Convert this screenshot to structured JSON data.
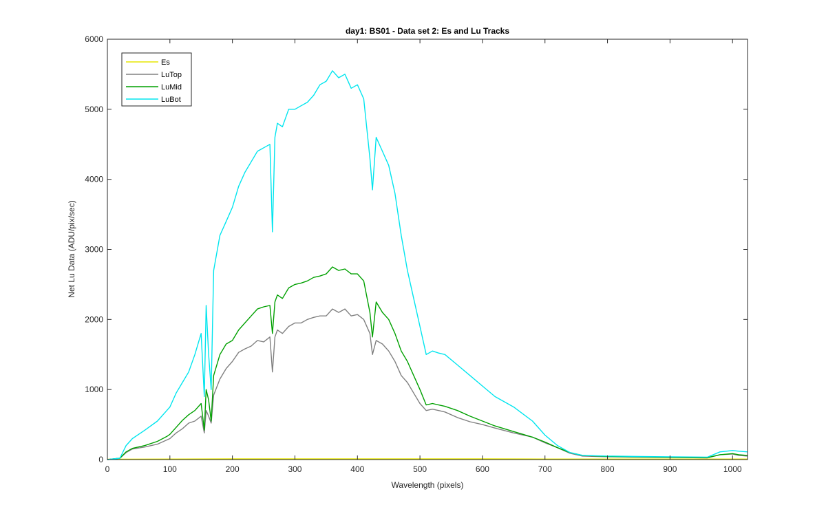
{
  "chart_data": {
    "type": "line",
    "title": "day1: BS01 - Data set 2: Es and Lu Tracks",
    "xlabel": "Wavelength (pixels)",
    "ylabel": "Net Lu Data (ADU/pix/sec)",
    "xlim": [
      0,
      1024
    ],
    "ylim": [
      0,
      6000
    ],
    "xticks": [
      0,
      100,
      200,
      300,
      400,
      500,
      600,
      700,
      800,
      900,
      1000
    ],
    "yticks": [
      0,
      1000,
      2000,
      3000,
      4000,
      5000,
      6000
    ],
    "grid": false,
    "legend_position": "top-left",
    "series": [
      {
        "name": "Es",
        "color": "#e6e600",
        "x": [
          0,
          100,
          200,
          300,
          400,
          500,
          600,
          700,
          800,
          900,
          1024
        ],
        "y": [
          5,
          8,
          10,
          10,
          10,
          10,
          10,
          8,
          8,
          8,
          8
        ]
      },
      {
        "name": "LuTop",
        "color": "#808080",
        "x": [
          0,
          20,
          30,
          40,
          60,
          80,
          95,
          100,
          110,
          120,
          130,
          140,
          150,
          155,
          158,
          162,
          166,
          170,
          180,
          190,
          200,
          210,
          220,
          230,
          240,
          250,
          260,
          264,
          268,
          272,
          280,
          290,
          300,
          310,
          320,
          330,
          340,
          350,
          360,
          370,
          380,
          390,
          400,
          410,
          420,
          424,
          430,
          440,
          450,
          460,
          470,
          480,
          490,
          500,
          510,
          520,
          530,
          540,
          560,
          580,
          600,
          620,
          650,
          680,
          700,
          720,
          740,
          760,
          800,
          850,
          900,
          960,
          980,
          1000,
          1010,
          1024
        ],
        "y": [
          0,
          20,
          100,
          150,
          180,
          220,
          280,
          300,
          380,
          440,
          520,
          550,
          620,
          380,
          700,
          620,
          520,
          920,
          1150,
          1300,
          1400,
          1530,
          1580,
          1620,
          1700,
          1680,
          1750,
          1250,
          1750,
          1850,
          1800,
          1900,
          1950,
          1950,
          2000,
          2030,
          2050,
          2050,
          2150,
          2100,
          2150,
          2050,
          2070,
          2000,
          1800,
          1500,
          1700,
          1650,
          1550,
          1400,
          1200,
          1100,
          950,
          800,
          700,
          720,
          700,
          680,
          600,
          540,
          500,
          450,
          380,
          320,
          240,
          170,
          90,
          50,
          40,
          35,
          30,
          25,
          70,
          80,
          60,
          50
        ]
      },
      {
        "name": "LuMid",
        "color": "#00a000",
        "x": [
          0,
          20,
          30,
          40,
          60,
          80,
          95,
          100,
          110,
          120,
          130,
          140,
          150,
          155,
          158,
          162,
          166,
          170,
          180,
          190,
          200,
          210,
          220,
          230,
          240,
          250,
          260,
          264,
          268,
          272,
          280,
          290,
          300,
          310,
          320,
          330,
          340,
          350,
          360,
          370,
          380,
          390,
          400,
          410,
          420,
          424,
          430,
          440,
          450,
          460,
          470,
          480,
          490,
          500,
          510,
          520,
          530,
          540,
          560,
          580,
          600,
          620,
          650,
          680,
          700,
          720,
          740,
          760,
          800,
          850,
          900,
          960,
          980,
          1000,
          1010,
          1024
        ],
        "y": [
          0,
          20,
          110,
          160,
          200,
          260,
          330,
          360,
          460,
          560,
          640,
          700,
          800,
          420,
          1000,
          850,
          550,
          1200,
          1500,
          1650,
          1700,
          1850,
          1950,
          2050,
          2150,
          2180,
          2200,
          1800,
          2250,
          2350,
          2300,
          2450,
          2500,
          2520,
          2550,
          2600,
          2620,
          2650,
          2750,
          2700,
          2720,
          2650,
          2650,
          2550,
          2100,
          1750,
          2250,
          2100,
          2000,
          1800,
          1550,
          1400,
          1200,
          1000,
          780,
          800,
          780,
          760,
          700,
          620,
          550,
          480,
          400,
          320,
          250,
          170,
          100,
          60,
          45,
          38,
          32,
          28,
          70,
          85,
          70,
          60
        ]
      },
      {
        "name": "LuBot",
        "color": "#00e5ee",
        "x": [
          0,
          20,
          30,
          40,
          60,
          80,
          95,
          100,
          110,
          120,
          130,
          140,
          150,
          155,
          158,
          162,
          166,
          170,
          180,
          190,
          200,
          210,
          220,
          230,
          240,
          250,
          260,
          264,
          268,
          272,
          280,
          290,
          300,
          310,
          320,
          330,
          340,
          350,
          360,
          370,
          380,
          390,
          400,
          410,
          420,
          424,
          430,
          440,
          450,
          460,
          470,
          480,
          490,
          500,
          510,
          520,
          530,
          540,
          560,
          580,
          600,
          620,
          650,
          680,
          700,
          720,
          740,
          760,
          800,
          850,
          900,
          960,
          980,
          1000,
          1010,
          1024
        ],
        "y": [
          0,
          20,
          200,
          300,
          420,
          550,
          700,
          750,
          950,
          1100,
          1250,
          1500,
          1800,
          900,
          2200,
          1500,
          1000,
          2700,
          3200,
          3400,
          3600,
          3900,
          4100,
          4250,
          4400,
          4450,
          4500,
          3250,
          4600,
          4800,
          4750,
          5000,
          5000,
          5050,
          5100,
          5200,
          5350,
          5400,
          5550,
          5450,
          5500,
          5300,
          5350,
          5150,
          4300,
          3850,
          4600,
          4400,
          4200,
          3800,
          3200,
          2700,
          2300,
          1900,
          1500,
          1550,
          1520,
          1500,
          1350,
          1200,
          1050,
          900,
          750,
          550,
          350,
          200,
          100,
          60,
          50,
          45,
          40,
          35,
          110,
          130,
          120,
          110
        ]
      }
    ]
  }
}
